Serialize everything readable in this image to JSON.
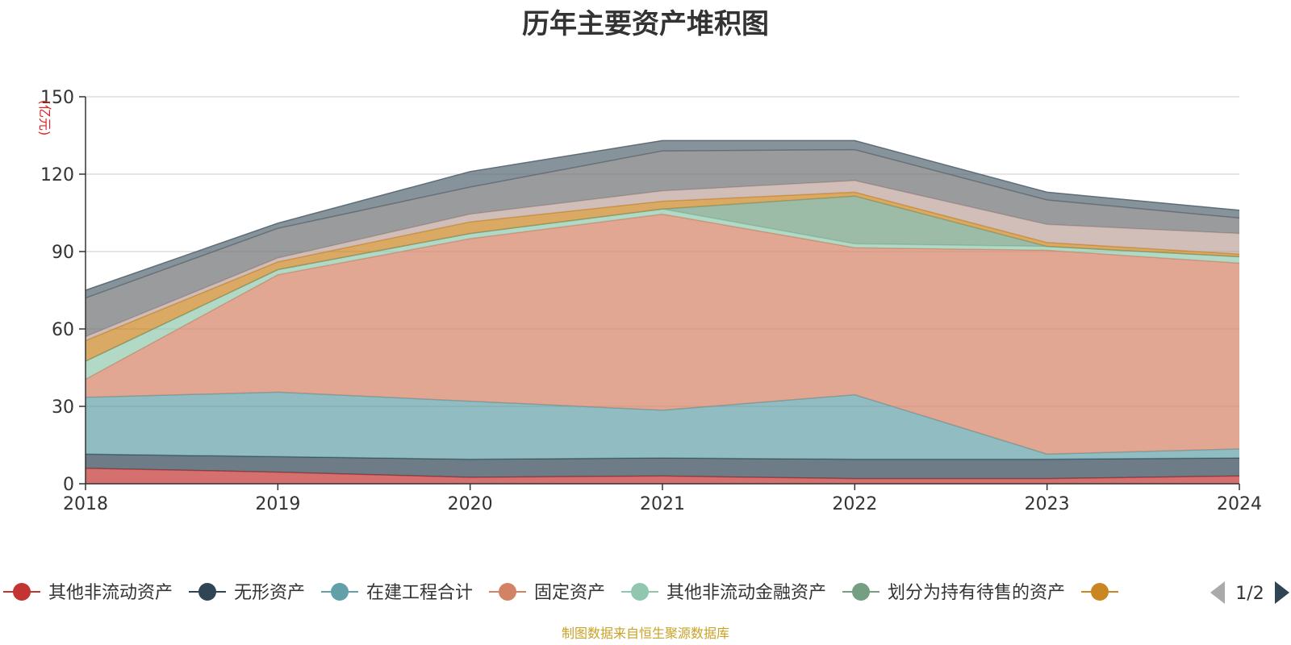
{
  "title": "历年主要资产堆积图",
  "source_note": "制图数据来自恒生聚源数据库",
  "chart_data": {
    "type": "area",
    "stacked": true,
    "title": "历年主要资产堆积图",
    "y_unit": "(亿元)",
    "xlabel": "",
    "ylabel": "",
    "x": [
      "2018",
      "2019",
      "2020",
      "2021",
      "2022",
      "2023",
      "2024"
    ],
    "ylim": [
      0,
      150
    ],
    "yticks": [
      0,
      30,
      60,
      90,
      120,
      150
    ],
    "grid": true,
    "legend_position": "bottom",
    "series": [
      {
        "name": "其他非流动资产",
        "color": "#c23531",
        "values": [
          6,
          4.5,
          2.5,
          3,
          2,
          2,
          3
        ]
      },
      {
        "name": "无形资产",
        "color": "#2f4554",
        "values": [
          5.5,
          6,
          7,
          7,
          7.5,
          7.5,
          7
        ]
      },
      {
        "name": "在建工程合计",
        "color": "#61a0a8",
        "values": [
          22,
          25,
          22.5,
          18.5,
          25,
          2,
          3.5
        ]
      },
      {
        "name": "固定资产",
        "color": "#d48265",
        "values": [
          7,
          45.5,
          63,
          76,
          57,
          79,
          72
        ]
      },
      {
        "name": "其他非流动金融资产",
        "color": "#91c7ae",
        "values": [
          7,
          2,
          2,
          2,
          1.5,
          1.5,
          2.5
        ]
      },
      {
        "name": "划分为持有待售的资产",
        "color": "#749f83",
        "values": [
          0,
          0,
          0,
          0,
          18.5,
          0,
          0
        ]
      },
      {
        "name": "",
        "color": "#ca8622",
        "values": [
          8,
          3,
          4.5,
          3,
          1.5,
          1.5,
          1
        ]
      },
      {
        "name": "",
        "color": "#bda29a",
        "values": [
          1.5,
          1.5,
          3,
          4,
          4.5,
          7,
          8
        ]
      },
      {
        "name": "",
        "color": "#6e7074",
        "values": [
          15,
          11.5,
          10.5,
          15.5,
          12,
          9.5,
          6
        ]
      },
      {
        "name": "",
        "color": "#546570",
        "values": [
          3,
          2,
          6,
          4,
          3.5,
          3,
          3
        ]
      }
    ],
    "legend_page": "1/2"
  }
}
